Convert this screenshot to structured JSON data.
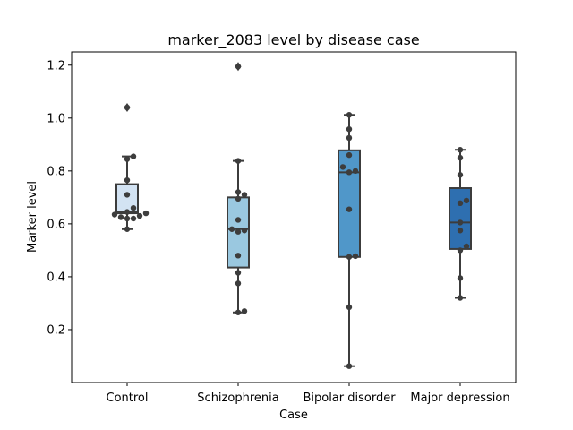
{
  "chart_data": {
    "type": "box",
    "title": "marker_2083 level by disease case",
    "xlabel": "Case",
    "ylabel": "Marker level",
    "ylim": [
      0.0,
      1.25
    ],
    "yticks": [
      0.2,
      0.4,
      0.6,
      0.8,
      1.0,
      1.2
    ],
    "grid": false,
    "categories": [
      "Control",
      "Schizophrenia",
      "Bipolar disorder",
      "Major depression"
    ],
    "box_colors": [
      "#d3e3f3",
      "#9ac8e0",
      "#5097c9",
      "#2e6fb0"
    ],
    "point_color": "#3d3d3d",
    "boxes": [
      {
        "category": "Control",
        "q1": 0.64,
        "median": 0.645,
        "q3": 0.75,
        "whisker_low": 0.58,
        "whisker_high": 0.855,
        "outliers": [
          1.04
        ]
      },
      {
        "category": "Schizophrenia",
        "q1": 0.435,
        "median": 0.58,
        "q3": 0.7,
        "whisker_low": 0.265,
        "whisker_high": 0.838,
        "outliers": [
          1.195
        ]
      },
      {
        "category": "Bipolar disorder",
        "q1": 0.475,
        "median": 0.795,
        "q3": 0.878,
        "whisker_low": 0.062,
        "whisker_high": 1.012,
        "outliers": []
      },
      {
        "category": "Major depression",
        "q1": 0.505,
        "median": 0.605,
        "q3": 0.735,
        "whisker_low": 0.32,
        "whisker_high": 0.88,
        "outliers": []
      }
    ],
    "points": [
      [
        1.04,
        0.855,
        0.845,
        0.765,
        0.71,
        0.66,
        0.645,
        0.64,
        0.635,
        0.63,
        0.625,
        0.62,
        0.62,
        0.58
      ],
      [
        1.195,
        0.838,
        0.72,
        0.71,
        0.695,
        0.615,
        0.58,
        0.575,
        0.57,
        0.48,
        0.415,
        0.375,
        0.27,
        0.265
      ],
      [
        1.012,
        0.958,
        0.925,
        0.86,
        0.815,
        0.8,
        0.795,
        0.655,
        0.478,
        0.475,
        0.285,
        0.062
      ],
      [
        0.88,
        0.85,
        0.785,
        0.688,
        0.678,
        0.605,
        0.575,
        0.515,
        0.5,
        0.395,
        0.32
      ]
    ]
  }
}
